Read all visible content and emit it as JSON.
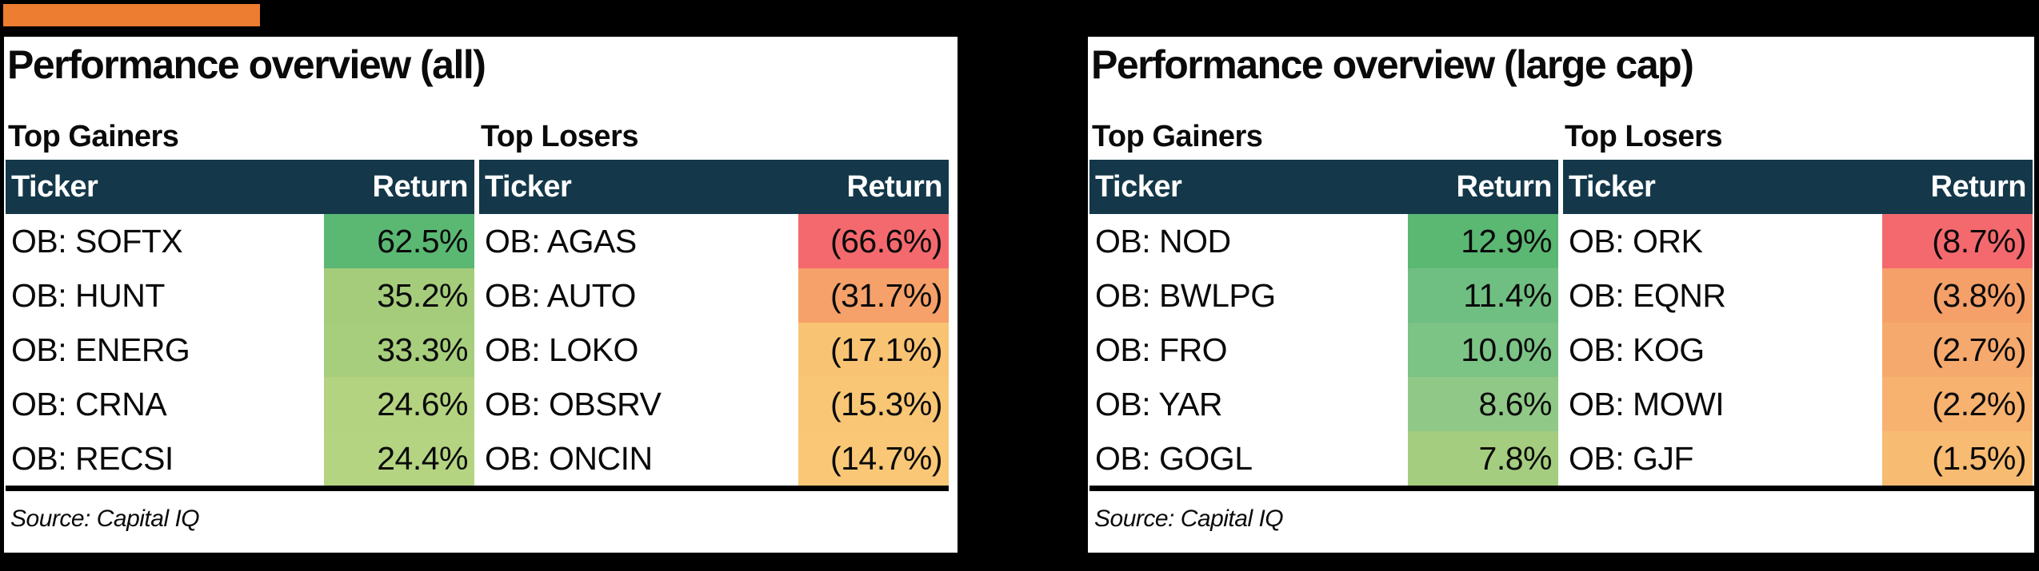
{
  "colors": {
    "accent_orange": "#ED7D31",
    "header_bg": "#14384A",
    "header_text": "#FFFFFF",
    "rule_black": "#000000",
    "panel_bg": "#FFFFFF",
    "canvas_bg": "#000000"
  },
  "panels": [
    {
      "title": "Performance overview (all)",
      "source": "Source: Capital IQ",
      "tables": [
        {
          "label": "Top Gainers",
          "col_ticker": "Ticker",
          "col_return": "Return",
          "rows": [
            {
              "ticker": "OB: SOFTX",
              "return": "62.5%",
              "color": "#5ab873"
            },
            {
              "ticker": "OB: HUNT",
              "return": "35.2%",
              "color": "#a4cc7b"
            },
            {
              "ticker": "OB: ENERG",
              "return": "33.3%",
              "color": "#a7ce7c"
            },
            {
              "ticker": "OB: CRNA",
              "return": "24.6%",
              "color": "#b4d381"
            },
            {
              "ticker": "OB: RECSI",
              "return": "24.4%",
              "color": "#b5d482"
            }
          ]
        },
        {
          "label": "Top Losers",
          "col_ticker": "Ticker",
          "col_return": "Return",
          "rows": [
            {
              "ticker": "OB: AGAS",
              "return": "(66.6%)",
              "color": "#f4696d"
            },
            {
              "ticker": "OB: AUTO",
              "return": "(31.7%)",
              "color": "#f5a169"
            },
            {
              "ticker": "OB: LOKO",
              "return": "(17.1%)",
              "color": "#f9c374"
            },
            {
              "ticker": "OB: OBSRV",
              "return": "(15.3%)",
              "color": "#f9c675"
            },
            {
              "ticker": "OB: ONCIN",
              "return": "(14.7%)",
              "color": "#f9c776"
            }
          ]
        }
      ]
    },
    {
      "title": "Performance overview (large cap)",
      "source": "Source: Capital IQ",
      "tables": [
        {
          "label": "Top Gainers",
          "col_ticker": "Ticker",
          "col_return": "Return",
          "rows": [
            {
              "ticker": "OB: NOD",
              "return": "12.9%",
              "color": "#5ab873"
            },
            {
              "ticker": "OB: BWLPG",
              "return": "11.4%",
              "color": "#70bf82"
            },
            {
              "ticker": "OB: FRO",
              "return": "10.0%",
              "color": "#7cc386"
            },
            {
              "ticker": "OB: YAR",
              "return": "8.6%",
              "color": "#90c987"
            },
            {
              "ticker": "OB: GOGL",
              "return": "7.8%",
              "color": "#a5cd7f"
            }
          ]
        },
        {
          "label": "Top Losers",
          "col_ticker": "Ticker",
          "col_return": "Return",
          "rows": [
            {
              "ticker": "OB: ORK",
              "return": "(8.7%)",
              "color": "#f4696d"
            },
            {
              "ticker": "OB: EQNR",
              "return": "(3.8%)",
              "color": "#f5a069"
            },
            {
              "ticker": "OB: KOG",
              "return": "(2.7%)",
              "color": "#f6a96c"
            },
            {
              "ticker": "OB: MOWI",
              "return": "(2.2%)",
              "color": "#f7b26f"
            },
            {
              "ticker": "OB: GJF",
              "return": "(1.5%)",
              "color": "#f8bb72"
            }
          ]
        }
      ]
    }
  ]
}
